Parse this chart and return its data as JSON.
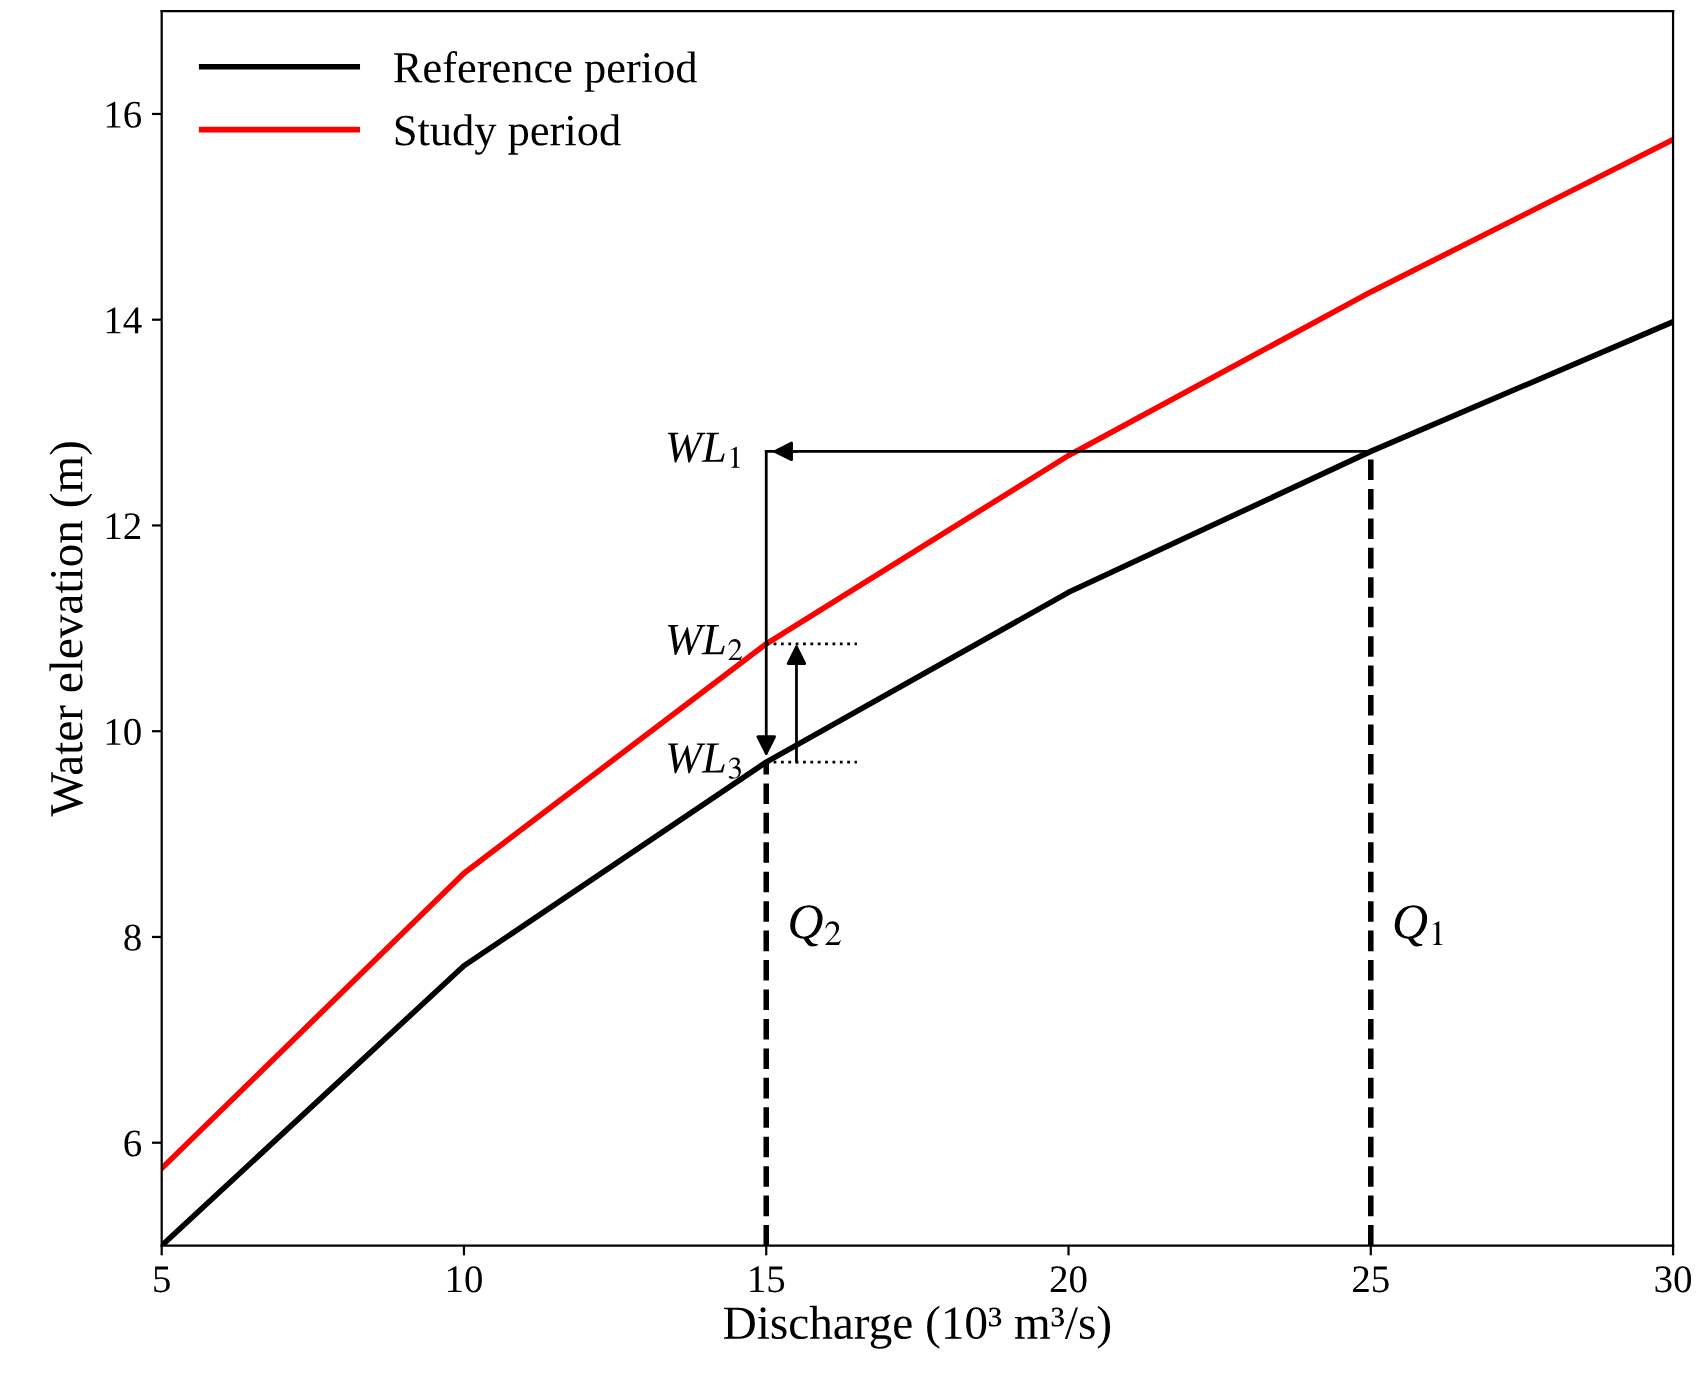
{
  "chart_data": {
    "type": "line",
    "xlabel": "Discharge (10³ m³/s)",
    "ylabel": "Water elevation (m)",
    "x": [
      5,
      10,
      15,
      20,
      25,
      30
    ],
    "series": [
      {
        "name": "Reference period",
        "color": "#000000",
        "values": [
          5.0,
          7.72,
          9.7,
          11.35,
          12.72,
          13.98
        ]
      },
      {
        "name": "Study period",
        "color": "#ff0000",
        "values": [
          5.75,
          8.62,
          10.85,
          12.68,
          14.27,
          15.75
        ]
      }
    ],
    "xlim": [
      5,
      30
    ],
    "xticks": [
      5,
      10,
      15,
      20,
      25,
      30
    ],
    "ylim": [
      5,
      17
    ],
    "yticks": [
      6,
      8,
      10,
      12,
      14,
      16
    ],
    "ref_lines": [
      {
        "axis": "x",
        "value": 25,
        "label": "Q$_{1}$",
        "line_style": "dashed",
        "color": "#000000"
      },
      {
        "axis": "x",
        "value": 15,
        "label": "Q$_{2}$",
        "line_style": "dashed",
        "color": "#000000"
      },
      {
        "axis": "y",
        "value": 12.72,
        "label": "WL$_{1}$",
        "line_style": "solid",
        "color": "#000000"
      }
    ],
    "annotations": [
      {
        "text": "WL$_{2}$",
        "x": 15,
        "y": 10.85
      },
      {
        "text": "WL$_{3}$",
        "x": 15,
        "y": 9.7
      }
    ],
    "legend": "top left",
    "grid": false,
    "marker": "none",
    "line_style": "solid"
  }
}
